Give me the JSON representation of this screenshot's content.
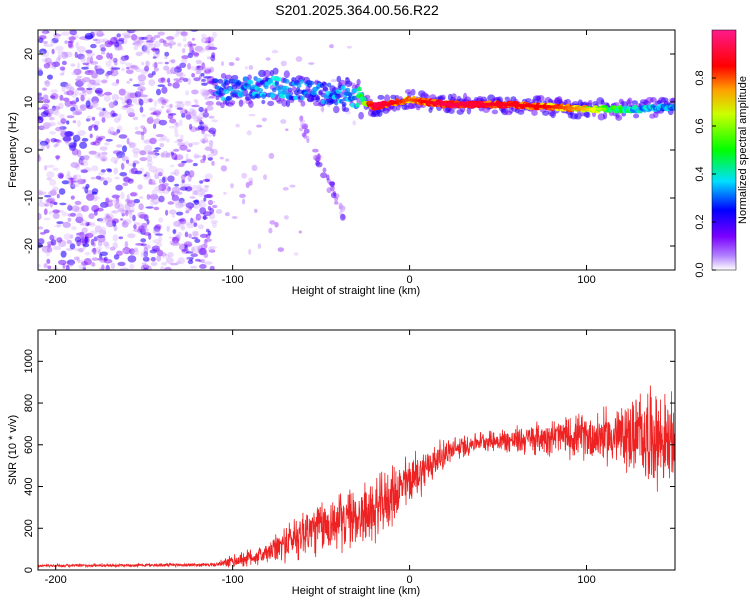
{
  "title": "S201.2025.364.00.56.R22",
  "chart_data": [
    {
      "type": "heatmap",
      "xlabel": "Height of straight line (km)",
      "ylabel": "Frequency (Hz)",
      "xlim": [
        -210,
        150
      ],
      "ylim": [
        -25,
        25
      ],
      "xticks": [
        -200,
        -100,
        0,
        100
      ],
      "yticks": [
        -20,
        -10,
        0,
        10,
        20
      ],
      "colorbar": {
        "label": "Normalized spectral amplitude",
        "range": [
          0,
          1
        ],
        "ticks": [
          0.0,
          0.2,
          0.4,
          0.6,
          0.8
        ],
        "colors": [
          "#ffffff",
          "#7a00ff",
          "#0000ff",
          "#00ffff",
          "#00ff00",
          "#ffff00",
          "#ff0000",
          "#ff007f"
        ]
      },
      "features": {
        "noise_region_x": [
          -210,
          -110
        ],
        "ridge": [
          {
            "x": -110,
            "freq": 12.5,
            "amp": 0.35
          },
          {
            "x": -90,
            "freq": 13,
            "amp": 0.4
          },
          {
            "x": -70,
            "freq": 13,
            "amp": 0.4
          },
          {
            "x": -50,
            "freq": 12,
            "amp": 0.35
          },
          {
            "x": -30,
            "freq": 11,
            "amp": 0.45
          },
          {
            "x": -20,
            "freq": 9,
            "amp": 0.95
          },
          {
            "x": 0,
            "freq": 10.5,
            "amp": 0.8
          },
          {
            "x": 20,
            "freq": 9.5,
            "amp": 0.95
          },
          {
            "x": 50,
            "freq": 9.5,
            "amp": 0.9
          },
          {
            "x": 80,
            "freq": 9,
            "amp": 0.85
          },
          {
            "x": 100,
            "freq": 8.5,
            "amp": 0.75
          },
          {
            "x": 130,
            "freq": 8.5,
            "amp": 0.45
          },
          {
            "x": 150,
            "freq": 9,
            "amp": 0.4
          }
        ]
      }
    },
    {
      "type": "line",
      "xlabel": "Height of straight line (km)",
      "ylabel": "SNR (10 * v/v)",
      "xlim": [
        -210,
        150
      ],
      "ylim": [
        0,
        1150
      ],
      "xticks": [
        -200,
        -100,
        0,
        100
      ],
      "yticks": [
        0,
        200,
        400,
        600,
        800,
        1000
      ],
      "series": [
        {
          "color": "#ee2222",
          "envelope": [
            {
              "x": -210,
              "mean": 20,
              "spread": 8
            },
            {
              "x": -110,
              "mean": 25,
              "spread": 10
            },
            {
              "x": -100,
              "mean": 40,
              "spread": 40
            },
            {
              "x": -80,
              "mean": 80,
              "spread": 60
            },
            {
              "x": -60,
              "mean": 180,
              "spread": 150
            },
            {
              "x": -40,
              "mean": 230,
              "spread": 160
            },
            {
              "x": -20,
              "mean": 280,
              "spread": 180
            },
            {
              "x": 0,
              "mean": 430,
              "spread": 150
            },
            {
              "x": 20,
              "mean": 560,
              "spread": 80
            },
            {
              "x": 40,
              "mean": 620,
              "spread": 50
            },
            {
              "x": 60,
              "mean": 620,
              "spread": 80
            },
            {
              "x": 80,
              "mean": 640,
              "spread": 100
            },
            {
              "x": 100,
              "mean": 640,
              "spread": 130
            },
            {
              "x": 120,
              "mean": 640,
              "spread": 180
            },
            {
              "x": 135,
              "mean": 650,
              "spread": 280
            },
            {
              "x": 150,
              "mean": 600,
              "spread": 250
            }
          ]
        }
      ]
    }
  ]
}
